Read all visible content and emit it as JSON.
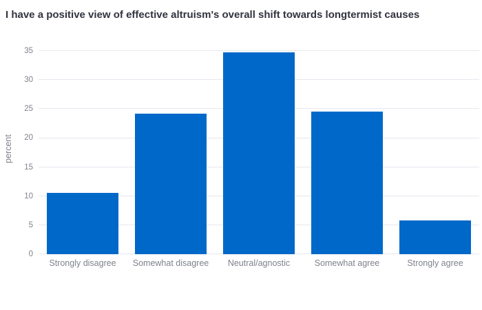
{
  "chart_data": {
    "type": "bar",
    "title": "I have a positive view of effective altruism's overall shift towards longtermist causes",
    "categories": [
      "Strongly disagree",
      "Somewhat disagree",
      "Neutral/agnostic",
      "Somewhat agree",
      "Strongly agree"
    ],
    "values": [
      10.6,
      24.2,
      34.8,
      24.6,
      5.8
    ],
    "xlabel": "",
    "ylabel": "percent",
    "ylim": [
      0,
      36.2
    ],
    "yticks": [
      0,
      5,
      10,
      15,
      20,
      25,
      30,
      35
    ],
    "grid": true,
    "legend": false
  },
  "colors": {
    "bar": "#0068c9",
    "title_text": "#31333f",
    "axis_text": "#7e828c",
    "gridline": "#e6e6ef",
    "background": "#ffffff"
  }
}
